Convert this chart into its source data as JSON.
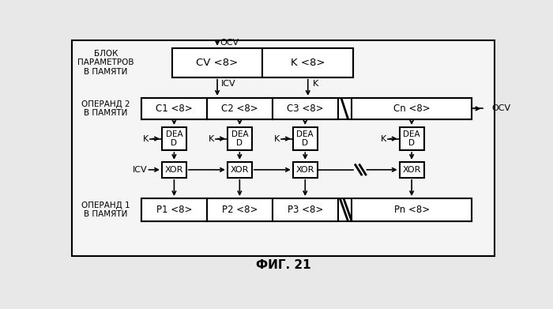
{
  "title": "ФИГ. 21",
  "bg_color": "#e8e8e8",
  "inner_bg": "#f5f5f5",
  "line_color": "#000000",
  "box_fill": "#ffffff",
  "text_color": "#000000",
  "fig_width": 7.0,
  "fig_height": 3.91,
  "label_blok": "БЛОК\nПАРАМЕТРОВ\nВ ПАМЯТИ",
  "label_operand2": "ОПЕРАНД 2\nВ ПАМЯТИ",
  "label_operand1": "ОПЕРАНД 1\nВ ПАМЯТИ",
  "cv_label": "CV <8>",
  "k_param_label": "K <8>",
  "c_labels": [
    "C1 <8>",
    "C2 <8>",
    "C3 <8>",
    "Cn <8>"
  ],
  "p_labels": [
    "P1 <8>",
    "P2 <8>",
    "P3 <8>",
    "Pn <8>"
  ],
  "dead_label": "DEA\nD",
  "xor_label": "XOR",
  "ocv_top": "OCV",
  "icv_label": "ICV",
  "k_label": "K",
  "ocv_right": "OCV"
}
